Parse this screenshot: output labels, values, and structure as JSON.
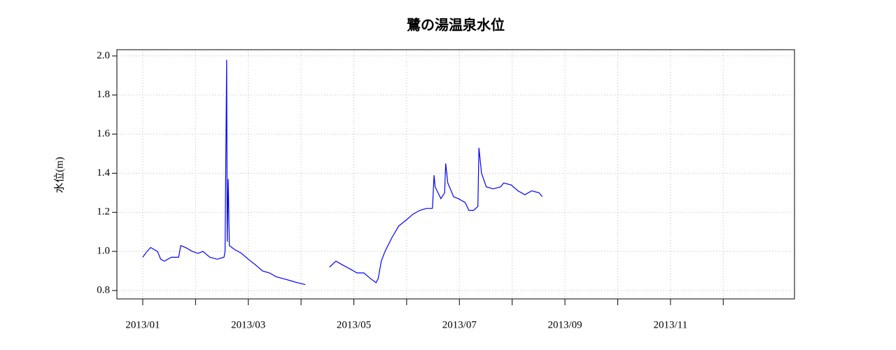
{
  "chart_data": {
    "type": "line",
    "title": "鷺の湯温泉水位",
    "y_label": "水位(m)",
    "x": [
      1.0,
      1.08,
      1.15,
      1.28,
      1.34,
      1.41,
      1.54,
      1.68,
      1.72,
      1.81,
      1.94,
      2.05,
      2.14,
      2.27,
      2.41,
      2.54,
      2.56,
      2.59,
      2.6,
      2.62,
      2.64,
      2.74,
      2.87,
      3.0,
      3.14,
      3.27,
      3.4,
      3.53,
      3.67,
      3.8,
      3.93,
      4.08,
      4.3,
      4.54,
      4.66,
      4.79,
      4.93,
      5.06,
      5.19,
      5.32,
      5.42,
      5.46,
      5.52,
      5.59,
      5.72,
      5.85,
      5.99,
      6.12,
      6.25,
      6.38,
      6.49,
      6.52,
      6.54,
      6.65,
      6.72,
      6.74,
      6.78,
      6.89,
      6.98,
      7.11,
      7.18,
      7.27,
      7.35,
      7.37,
      7.42,
      7.51,
      7.64,
      7.78,
      7.84,
      7.98,
      8.11,
      8.24,
      8.37,
      8.51,
      8.57
    ],
    "series": [
      {
        "color": "#0000ff",
        "values": [
          0.97,
          1.0,
          1.02,
          1.0,
          0.96,
          0.95,
          0.97,
          0.97,
          1.03,
          1.02,
          1.0,
          0.99,
          1.0,
          0.97,
          0.96,
          0.97,
          1.0,
          1.98,
          1.05,
          1.37,
          1.03,
          1.01,
          0.99,
          0.96,
          0.93,
          0.9,
          0.89,
          0.87,
          0.86,
          0.85,
          0.84,
          0.83,
          null,
          0.92,
          0.95,
          0.93,
          0.91,
          0.89,
          0.89,
          0.86,
          0.84,
          0.86,
          0.95,
          1.0,
          1.07,
          1.13,
          1.16,
          1.19,
          1.21,
          1.22,
          1.22,
          1.39,
          1.33,
          1.27,
          1.3,
          1.45,
          1.35,
          1.28,
          1.27,
          1.25,
          1.21,
          1.21,
          1.23,
          1.53,
          1.4,
          1.33,
          1.32,
          1.33,
          1.35,
          1.34,
          1.31,
          1.29,
          1.31,
          1.3,
          1.28
        ]
      }
    ],
    "xlim": [
      0.51,
      13.35
    ],
    "xticks": [
      {
        "value": 1,
        "label": "2013/01"
      },
      {
        "value": 2,
        "label": null
      },
      {
        "value": 3,
        "label": "2013/03"
      },
      {
        "value": 4,
        "label": null
      },
      {
        "value": 5,
        "label": "2013/05"
      },
      {
        "value": 6,
        "label": null
      },
      {
        "value": 7,
        "label": "2013/07"
      },
      {
        "value": 8,
        "label": null
      },
      {
        "value": 9,
        "label": "2013/09"
      },
      {
        "value": 10,
        "label": null
      },
      {
        "value": 11,
        "label": "2013/11"
      },
      {
        "value": 12,
        "label": null
      }
    ],
    "ylim": [
      0.757,
      2.032
    ],
    "yticks": [
      0.8,
      {
        "value": 1,
        "label": "1.0"
      },
      1.2,
      1.4,
      1.6,
      1.8,
      {
        "value": 2,
        "label": "2.0"
      }
    ],
    "grid": true
  }
}
